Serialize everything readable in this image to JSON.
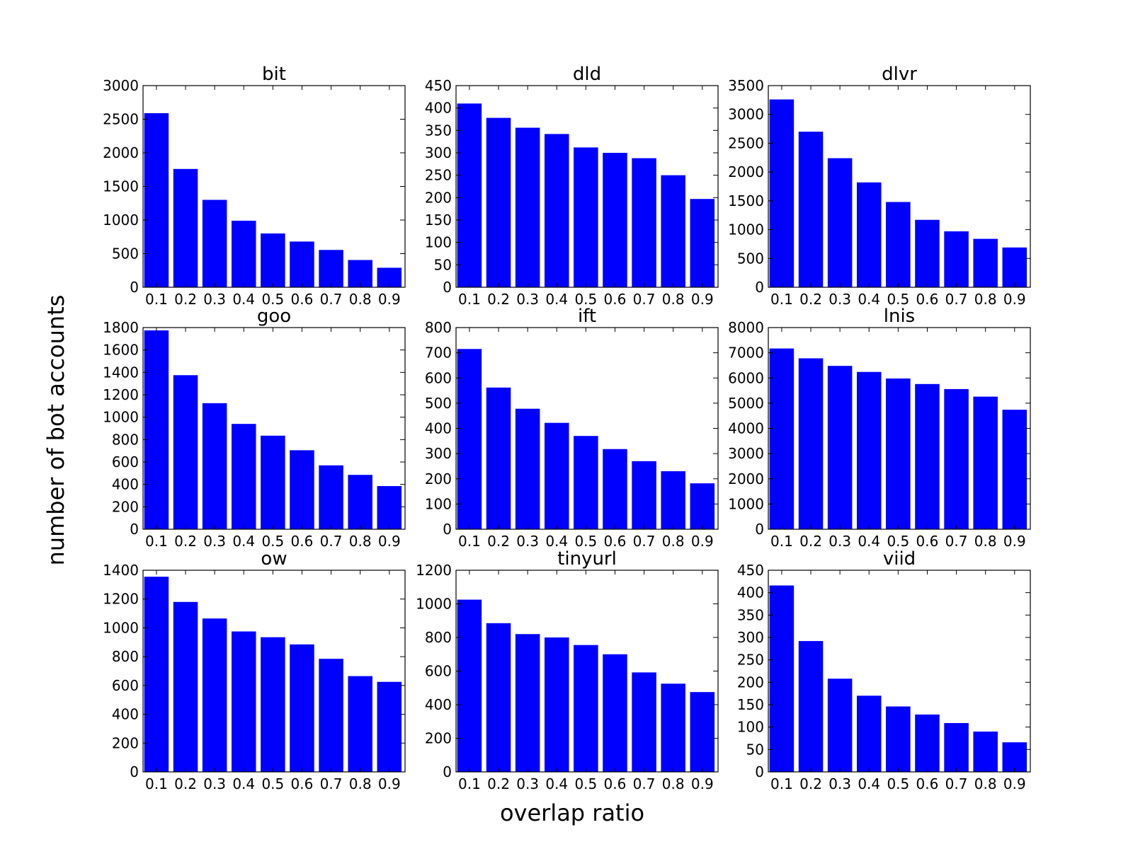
{
  "chart_data": {
    "type": "bar",
    "xlabel": "overlap ratio",
    "ylabel": "number of bot accounts",
    "bar_color": "#0000ff",
    "grid": false,
    "categories": [
      "0.1",
      "0.2",
      "0.3",
      "0.4",
      "0.5",
      "0.6",
      "0.7",
      "0.8",
      "0.9"
    ],
    "panels": [
      {
        "title": "bit",
        "values": [
          2590,
          1760,
          1300,
          990,
          800,
          680,
          555,
          405,
          290
        ],
        "ylim": [
          0,
          3000
        ],
        "yticks": [
          0,
          500,
          1000,
          1500,
          2000,
          2500,
          3000
        ]
      },
      {
        "title": "dld",
        "values": [
          410,
          378,
          356,
          342,
          312,
          300,
          288,
          250,
          197
        ],
        "ylim": [
          0,
          450
        ],
        "yticks": [
          0,
          50,
          100,
          150,
          200,
          250,
          300,
          350,
          400,
          450
        ]
      },
      {
        "title": "dlvr",
        "values": [
          3260,
          2700,
          2240,
          1820,
          1480,
          1170,
          970,
          840,
          690
        ],
        "ylim": [
          0,
          3500
        ],
        "yticks": [
          0,
          500,
          1000,
          1500,
          2000,
          2500,
          3000,
          3500
        ]
      },
      {
        "title": "goo",
        "values": [
          1775,
          1375,
          1125,
          940,
          835,
          705,
          570,
          485,
          385
        ],
        "ylim": [
          0,
          1800
        ],
        "yticks": [
          0,
          200,
          400,
          600,
          800,
          1000,
          1200,
          1400,
          1600,
          1800
        ]
      },
      {
        "title": "ift",
        "values": [
          715,
          562,
          478,
          422,
          370,
          318,
          270,
          230,
          182
        ],
        "ylim": [
          0,
          800
        ],
        "yticks": [
          0,
          100,
          200,
          300,
          400,
          500,
          600,
          700,
          800
        ]
      },
      {
        "title": "lnis",
        "values": [
          7170,
          6780,
          6480,
          6240,
          5980,
          5760,
          5560,
          5260,
          4740
        ],
        "ylim": [
          0,
          8000
        ],
        "yticks": [
          0,
          1000,
          2000,
          3000,
          4000,
          5000,
          6000,
          7000,
          8000
        ]
      },
      {
        "title": "ow",
        "values": [
          1355,
          1180,
          1065,
          975,
          935,
          885,
          785,
          665,
          625
        ],
        "ylim": [
          0,
          1400
        ],
        "yticks": [
          0,
          200,
          400,
          600,
          800,
          1000,
          1200,
          1400
        ]
      },
      {
        "title": "tinyurl",
        "values": [
          1025,
          885,
          820,
          800,
          755,
          700,
          592,
          525,
          475
        ],
        "ylim": [
          0,
          1200
        ],
        "yticks": [
          0,
          200,
          400,
          600,
          800,
          1000,
          1200
        ]
      },
      {
        "title": "viid",
        "values": [
          416,
          292,
          208,
          170,
          146,
          128,
          109,
          90,
          66
        ],
        "ylim": [
          0,
          450
        ],
        "yticks": [
          0,
          50,
          100,
          150,
          200,
          250,
          300,
          350,
          400,
          450
        ]
      }
    ]
  }
}
